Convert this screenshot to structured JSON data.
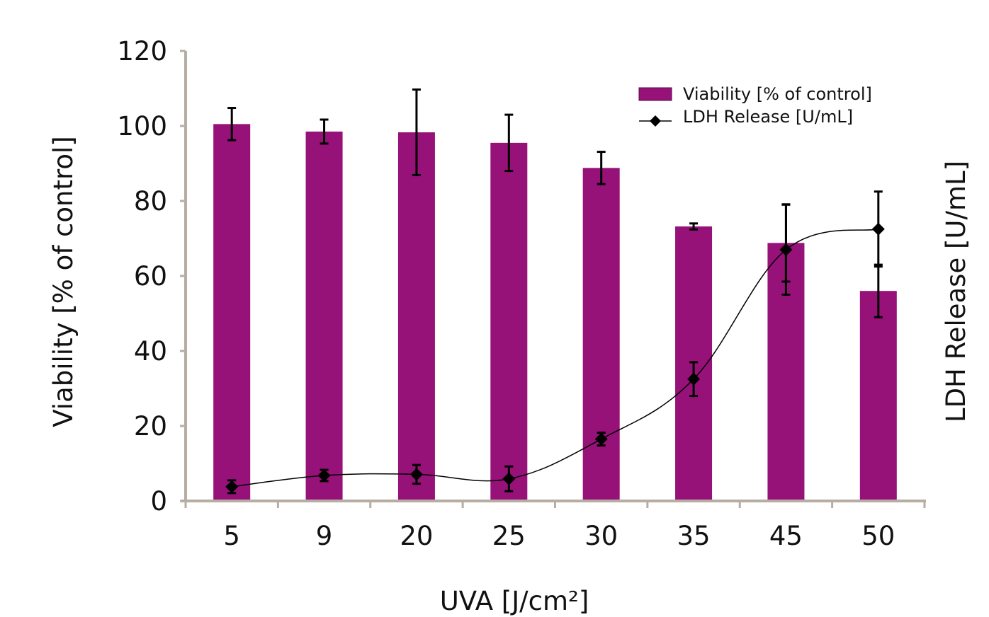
{
  "chart_data": {
    "type": "bar",
    "categories": [
      "5",
      "9",
      "20",
      "25",
      "30",
      "35",
      "45",
      "50"
    ],
    "xlabel": "UVA [J/cm²]",
    "ylabel_left": "Viability [% of control]",
    "ylabel_right": "LDH Release [U/mL]",
    "ylim": [
      0,
      120
    ],
    "yticks": [
      "0",
      "20",
      "40",
      "60",
      "80",
      "100",
      "120"
    ],
    "legend_position": "top-right",
    "series": [
      {
        "name": "Viability [% of control]",
        "type": "bar",
        "color": "#961178",
        "values": [
          100.5,
          98.5,
          98.3,
          95.5,
          88.8,
          73.2,
          68.8,
          56.0
        ],
        "errors": [
          4.3,
          3.2,
          11.4,
          7.5,
          4.3,
          0.8,
          10.3,
          7.0
        ]
      },
      {
        "name": "LDH Release [U/mL]",
        "type": "line",
        "color": "#000000",
        "values": [
          3.8,
          6.8,
          7.1,
          5.9,
          16.5,
          32.5,
          67.0,
          72.5
        ],
        "errors": [
          1.7,
          1.5,
          2.5,
          3.3,
          1.7,
          4.5,
          12.0,
          10.0
        ]
      }
    ]
  }
}
